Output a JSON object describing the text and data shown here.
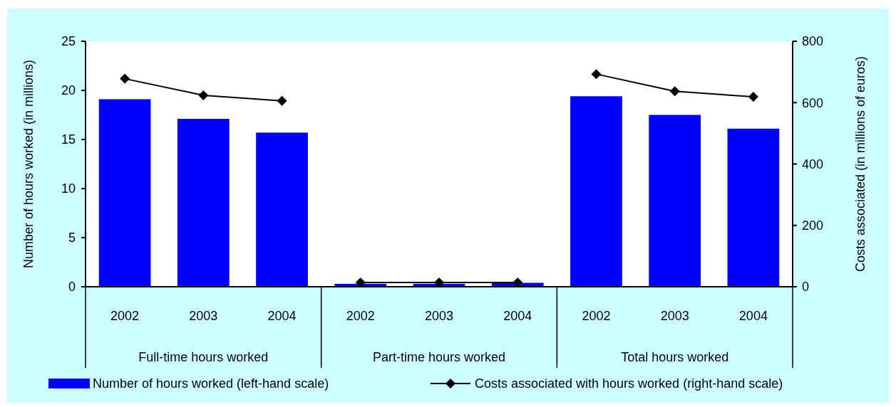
{
  "chart_data": {
    "type": "bar",
    "categories": [
      "2002",
      "2003",
      "2004",
      "2002",
      "2003",
      "2004",
      "2002",
      "2003",
      "2004"
    ],
    "series": [
      {
        "name": "Number of hours worked (left-hand scale)",
        "color": "#0000ff",
        "values": [
          19.1,
          17.1,
          15.7,
          0.3,
          0.3,
          0.4,
          19.4,
          17.5,
          16.1
        ]
      },
      {
        "name": "Costs associated with hours worked (right-hand scale)",
        "type": "line",
        "axis": "y2",
        "color": "#000000",
        "marker": "diamond",
        "values": [
          678,
          624,
          606,
          14,
          14,
          14,
          693,
          637,
          619
        ]
      }
    ],
    "annotations": [
      "Full-time hours worked",
      "Part-time hours worked",
      "Total hours worked"
    ],
    "ylabel": "Number of hours worked (in millions)",
    "y2label": "Costs associated (in millions of euros)",
    "ylim": [
      0,
      25
    ],
    "yticks": [
      0,
      5,
      10,
      15,
      20,
      25
    ],
    "y2lim": [
      0,
      800
    ],
    "y2ticks": [
      0,
      200,
      400,
      600,
      800
    ],
    "grid": false,
    "legend": "bottom"
  }
}
